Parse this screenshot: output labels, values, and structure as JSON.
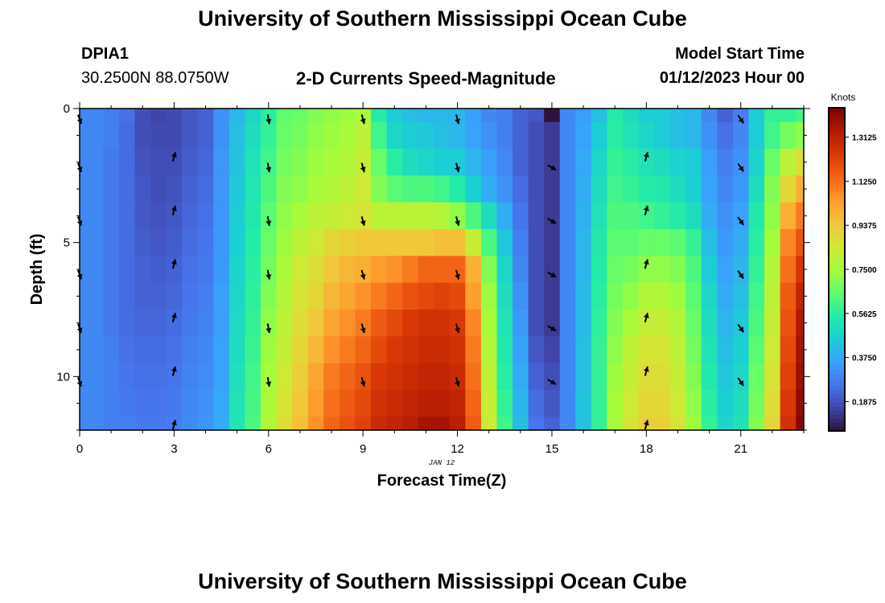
{
  "header": {
    "title": "University of Southern Mississippi Ocean Cube",
    "station_id": "DPIA1",
    "coords": "30.2500N  88.0750W",
    "plot_title": "2-D Currents Speed-Magnitude",
    "model_start_label": "Model Start Time",
    "model_start_value": "01/12/2023 Hour 00"
  },
  "footer": {
    "title": "University of Southern Mississippi Ocean Cube"
  },
  "colors": {
    "colormap": [
      "#30123b",
      "#4145ab",
      "#4675ed",
      "#39a2fc",
      "#1bcfd4",
      "#24eca6",
      "#61fc6c",
      "#a4fc3b",
      "#d1e834",
      "#f3c63a",
      "#fe9b2d",
      "#f36315",
      "#d93806",
      "#b11901",
      "#7a0402"
    ],
    "arrow": "#000000",
    "frame": "#000000"
  },
  "chart_data": {
    "type": "heatmap",
    "title": "2-D Currents Speed-Magnitude",
    "xlabel": "Forecast Time(Z)",
    "ylabel": "Depth (ft)",
    "date_label": "JAN 12",
    "xlim": [
      0,
      23
    ],
    "ylim": [
      0,
      12
    ],
    "x_ticks": [
      0,
      3,
      6,
      9,
      12,
      15,
      18,
      21
    ],
    "x_tick_labels": [
      "0",
      "3",
      "6",
      "9",
      "12",
      "15",
      "18",
      "21"
    ],
    "y_ticks": [
      0,
      5,
      10
    ],
    "y_tick_labels": [
      "0",
      "5",
      "10"
    ],
    "colorbar": {
      "label": "Knots",
      "range": [
        0.0625,
        1.4375
      ],
      "tick_values": [
        0.1875,
        0.375,
        0.5625,
        0.75,
        0.9375,
        1.125,
        1.3125
      ],
      "tick_labels": [
        "0.1875",
        "0.3750",
        "0.5625",
        "0.7500",
        "0.9375",
        "1.1250",
        "1.3125"
      ]
    },
    "times": [
      0,
      0.5,
      1,
      1.5,
      2,
      2.5,
      3,
      3.5,
      4,
      4.5,
      5,
      5.5,
      6,
      6.5,
      7,
      7.5,
      8,
      8.5,
      9,
      9.5,
      10,
      10.5,
      11,
      11.5,
      12,
      12.5,
      13,
      13.5,
      14,
      14.5,
      15,
      15.5,
      16,
      16.5,
      17,
      17.5,
      18,
      18.5,
      19,
      19.5,
      20,
      20.5,
      21,
      21.5,
      22,
      22.5,
      23
    ],
    "depth_levels": [
      0,
      1,
      2,
      3,
      4,
      5,
      6,
      7,
      8,
      9,
      10,
      11,
      12
    ],
    "speed_knots": [
      [
        0.3,
        0.3,
        0.28,
        0.25,
        0.18,
        0.16,
        0.17,
        0.2,
        0.22,
        0.32,
        0.4,
        0.48,
        0.56,
        0.65,
        0.66,
        0.7,
        0.72,
        0.74,
        0.76,
        0.55,
        0.45,
        0.42,
        0.4,
        0.4,
        0.4,
        0.35,
        0.3,
        0.28,
        0.22,
        0.2,
        0.06,
        0.3,
        0.35,
        0.42,
        0.55,
        0.5,
        0.45,
        0.45,
        0.42,
        0.4,
        0.3,
        0.22,
        0.28,
        0.45,
        0.58,
        0.58,
        0.6
      ],
      [
        0.3,
        0.3,
        0.28,
        0.24,
        0.18,
        0.17,
        0.17,
        0.2,
        0.22,
        0.32,
        0.42,
        0.5,
        0.58,
        0.66,
        0.68,
        0.72,
        0.74,
        0.76,
        0.8,
        0.6,
        0.48,
        0.45,
        0.44,
        0.42,
        0.4,
        0.36,
        0.32,
        0.28,
        0.22,
        0.18,
        0.14,
        0.3,
        0.36,
        0.45,
        0.56,
        0.52,
        0.48,
        0.45,
        0.42,
        0.4,
        0.32,
        0.25,
        0.3,
        0.45,
        0.6,
        0.68,
        0.72
      ],
      [
        0.3,
        0.3,
        0.27,
        0.24,
        0.19,
        0.18,
        0.18,
        0.21,
        0.23,
        0.33,
        0.43,
        0.52,
        0.6,
        0.68,
        0.7,
        0.74,
        0.76,
        0.78,
        0.82,
        0.66,
        0.56,
        0.5,
        0.48,
        0.46,
        0.45,
        0.4,
        0.35,
        0.3,
        0.22,
        0.18,
        0.14,
        0.3,
        0.37,
        0.48,
        0.58,
        0.56,
        0.52,
        0.5,
        0.47,
        0.45,
        0.35,
        0.28,
        0.32,
        0.47,
        0.66,
        0.8,
        0.88
      ],
      [
        0.3,
        0.3,
        0.27,
        0.24,
        0.2,
        0.18,
        0.19,
        0.22,
        0.24,
        0.33,
        0.44,
        0.53,
        0.62,
        0.7,
        0.72,
        0.76,
        0.78,
        0.8,
        0.84,
        0.7,
        0.64,
        0.62,
        0.62,
        0.6,
        0.55,
        0.46,
        0.38,
        0.32,
        0.24,
        0.18,
        0.14,
        0.3,
        0.38,
        0.5,
        0.6,
        0.58,
        0.55,
        0.54,
        0.5,
        0.46,
        0.36,
        0.3,
        0.34,
        0.5,
        0.7,
        0.9,
        1.0
      ],
      [
        0.3,
        0.3,
        0.27,
        0.24,
        0.2,
        0.19,
        0.2,
        0.23,
        0.25,
        0.33,
        0.45,
        0.54,
        0.64,
        0.72,
        0.76,
        0.8,
        0.82,
        0.84,
        0.86,
        0.8,
        0.8,
        0.8,
        0.8,
        0.78,
        0.72,
        0.62,
        0.5,
        0.38,
        0.26,
        0.18,
        0.14,
        0.3,
        0.39,
        0.52,
        0.62,
        0.62,
        0.6,
        0.58,
        0.55,
        0.5,
        0.38,
        0.32,
        0.36,
        0.54,
        0.72,
        1.0,
        1.1
      ],
      [
        0.3,
        0.3,
        0.27,
        0.24,
        0.21,
        0.2,
        0.21,
        0.24,
        0.26,
        0.34,
        0.46,
        0.55,
        0.66,
        0.74,
        0.8,
        0.84,
        0.9,
        0.92,
        0.94,
        0.94,
        0.94,
        0.94,
        0.94,
        0.96,
        0.96,
        0.82,
        0.62,
        0.44,
        0.28,
        0.18,
        0.14,
        0.3,
        0.4,
        0.54,
        0.64,
        0.64,
        0.66,
        0.66,
        0.64,
        0.58,
        0.42,
        0.34,
        0.38,
        0.56,
        0.75,
        1.08,
        1.18
      ],
      [
        0.3,
        0.3,
        0.27,
        0.24,
        0.22,
        0.21,
        0.22,
        0.25,
        0.27,
        0.34,
        0.47,
        0.56,
        0.68,
        0.76,
        0.84,
        0.88,
        0.94,
        0.98,
        1.0,
        1.04,
        1.06,
        1.1,
        1.14,
        1.14,
        1.14,
        1.0,
        0.7,
        0.48,
        0.3,
        0.18,
        0.14,
        0.3,
        0.4,
        0.55,
        0.66,
        0.68,
        0.72,
        0.72,
        0.7,
        0.62,
        0.45,
        0.36,
        0.4,
        0.58,
        0.78,
        1.12,
        1.25
      ],
      [
        0.3,
        0.3,
        0.27,
        0.24,
        0.22,
        0.22,
        0.23,
        0.26,
        0.28,
        0.35,
        0.48,
        0.57,
        0.7,
        0.78,
        0.86,
        0.9,
        0.98,
        1.02,
        1.06,
        1.1,
        1.14,
        1.18,
        1.2,
        1.22,
        1.2,
        1.04,
        0.74,
        0.5,
        0.32,
        0.18,
        0.14,
        0.3,
        0.41,
        0.56,
        0.68,
        0.72,
        0.78,
        0.78,
        0.74,
        0.64,
        0.48,
        0.38,
        0.42,
        0.6,
        0.8,
        1.16,
        1.3
      ],
      [
        0.3,
        0.3,
        0.27,
        0.24,
        0.23,
        0.23,
        0.24,
        0.27,
        0.29,
        0.35,
        0.49,
        0.58,
        0.72,
        0.8,
        0.88,
        0.94,
        1.02,
        1.06,
        1.1,
        1.16,
        1.2,
        1.24,
        1.26,
        1.26,
        1.24,
        1.08,
        0.76,
        0.52,
        0.34,
        0.18,
        0.14,
        0.3,
        0.41,
        0.57,
        0.7,
        0.76,
        0.82,
        0.82,
        0.78,
        0.66,
        0.5,
        0.4,
        0.44,
        0.62,
        0.82,
        1.18,
        1.34
      ],
      [
        0.3,
        0.3,
        0.28,
        0.25,
        0.24,
        0.24,
        0.25,
        0.28,
        0.3,
        0.36,
        0.5,
        0.59,
        0.74,
        0.82,
        0.9,
        0.98,
        1.06,
        1.1,
        1.14,
        1.2,
        1.24,
        1.26,
        1.28,
        1.28,
        1.26,
        1.1,
        0.78,
        0.54,
        0.36,
        0.2,
        0.16,
        0.3,
        0.42,
        0.58,
        0.72,
        0.8,
        0.86,
        0.86,
        0.8,
        0.68,
        0.52,
        0.42,
        0.46,
        0.64,
        0.84,
        1.2,
        1.36
      ],
      [
        0.3,
        0.3,
        0.28,
        0.26,
        0.25,
        0.25,
        0.26,
        0.29,
        0.31,
        0.36,
        0.51,
        0.6,
        0.75,
        0.84,
        0.92,
        1.02,
        1.1,
        1.14,
        1.18,
        1.24,
        1.26,
        1.28,
        1.3,
        1.3,
        1.28,
        1.12,
        0.8,
        0.56,
        0.38,
        0.22,
        0.18,
        0.3,
        0.42,
        0.58,
        0.74,
        0.82,
        0.88,
        0.88,
        0.82,
        0.7,
        0.54,
        0.44,
        0.48,
        0.66,
        0.86,
        1.22,
        1.38
      ],
      [
        0.3,
        0.3,
        0.28,
        0.27,
        0.26,
        0.26,
        0.27,
        0.3,
        0.32,
        0.37,
        0.52,
        0.61,
        0.76,
        0.86,
        0.94,
        1.04,
        1.12,
        1.16,
        1.2,
        1.26,
        1.28,
        1.3,
        1.32,
        1.32,
        1.3,
        1.14,
        0.82,
        0.58,
        0.4,
        0.24,
        0.2,
        0.3,
        0.43,
        0.58,
        0.75,
        0.84,
        0.9,
        0.9,
        0.84,
        0.72,
        0.56,
        0.46,
        0.5,
        0.68,
        0.88,
        1.24,
        1.4
      ],
      [
        0.3,
        0.3,
        0.28,
        0.28,
        0.27,
        0.27,
        0.28,
        0.31,
        0.33,
        0.38,
        0.53,
        0.62,
        0.78,
        0.88,
        0.96,
        1.06,
        1.14,
        1.18,
        1.22,
        1.28,
        1.3,
        1.32,
        1.36,
        1.36,
        1.32,
        1.16,
        0.84,
        0.6,
        0.42,
        0.26,
        0.22,
        0.3,
        0.43,
        0.58,
        0.76,
        0.86,
        0.92,
        0.92,
        0.86,
        0.74,
        0.58,
        0.48,
        0.52,
        0.7,
        0.9,
        1.26,
        1.42
      ]
    ],
    "vectors": [
      {
        "t": 0,
        "depths": [
          0.4,
          2.2,
          4.2,
          6.2,
          8.2,
          10.2
        ],
        "dir_deg": 160
      },
      {
        "t": 3,
        "depths": [
          1.8,
          3.8,
          5.8,
          7.8,
          9.8,
          11.8
        ],
        "dir_deg": 15
      },
      {
        "t": 6,
        "depths": [
          0.4,
          2.2,
          4.2,
          6.2,
          8.2,
          10.2
        ],
        "dir_deg": 170
      },
      {
        "t": 9,
        "depths": [
          0.4,
          2.2,
          4.2,
          6.2,
          8.2,
          10.2
        ],
        "dir_deg": 165
      },
      {
        "t": 12,
        "depths": [
          0.4,
          2.2,
          4.2,
          6.2,
          8.2,
          10.2
        ],
        "dir_deg": 165
      },
      {
        "t": 15,
        "depths": [
          2.2,
          4.2,
          6.2,
          8.2,
          10.2
        ],
        "dir_deg": 120
      },
      {
        "t": 18,
        "depths": [
          1.8,
          3.8,
          5.8,
          7.8,
          9.8,
          11.8
        ],
        "dir_deg": 15
      },
      {
        "t": 21,
        "depths": [
          0.4,
          2.2,
          4.2,
          6.2,
          8.2,
          10.2
        ],
        "dir_deg": 145
      }
    ]
  }
}
